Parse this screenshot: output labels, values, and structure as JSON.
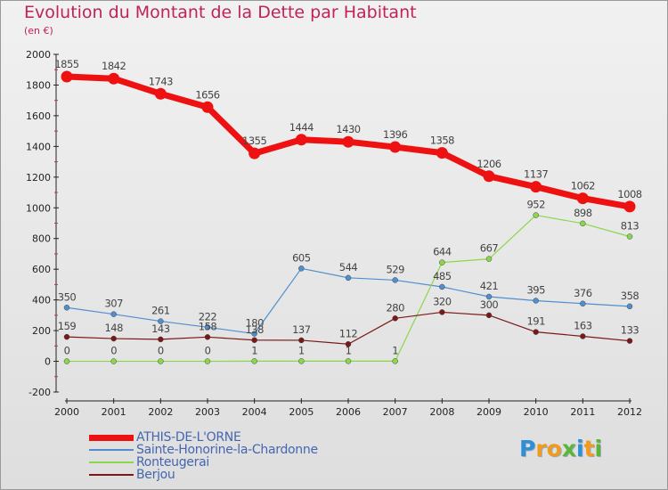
{
  "title": "Evolution du Montant de la Dette par Habitant",
  "subtitle": "(en €)",
  "logo": {
    "letters": [
      {
        "t": "P",
        "color": "#2f8fd6"
      },
      {
        "t": "r",
        "color": "#f29a1b"
      },
      {
        "t": "o",
        "color": "#f29a1b"
      },
      {
        "t": "x",
        "color": "#5bb536"
      },
      {
        "t": "i",
        "color": "#2f8fd6"
      },
      {
        "t": "t",
        "color": "#f29a1b"
      },
      {
        "t": "i",
        "color": "#5bb536"
      }
    ]
  },
  "chart_data": {
    "type": "line",
    "x": [
      "2000",
      "2001",
      "2002",
      "2003",
      "2004",
      "2005",
      "2006",
      "2007",
      "2008",
      "2009",
      "2010",
      "2011",
      "2012"
    ],
    "ylim": [
      -200,
      2000
    ],
    "yticks": [
      "-200",
      "0",
      "200",
      "400",
      "600",
      "800",
      "1000",
      "1200",
      "1400",
      "1600",
      "1800",
      "2000"
    ],
    "grid": false,
    "legend_position": "bottom-left",
    "series": [
      {
        "name": "ATHIS-DE-L'ORNE",
        "color": "#ee1111",
        "width": 7,
        "values": [
          1855,
          1842,
          1743,
          1656,
          1355,
          1444,
          1430,
          1396,
          1358,
          1206,
          1137,
          1062,
          1008
        ],
        "labels": [
          "1855",
          "1842",
          "1743",
          "1656",
          "1355",
          "1444",
          "1430",
          "1396",
          "1358",
          "1206",
          "1137",
          "1062",
          "1008"
        ]
      },
      {
        "name": "Sainte-Honorine-la-Chardonne",
        "color": "#4f8fd0",
        "width": 1.2,
        "values": [
          350,
          307,
          261,
          222,
          180,
          605,
          544,
          529,
          485,
          421,
          395,
          376,
          358
        ],
        "labels": [
          "350",
          "307",
          "261",
          "222",
          "180",
          "605",
          "544",
          "529",
          "485",
          "421",
          "395",
          "376",
          "358"
        ]
      },
      {
        "name": "Ronteugerai",
        "color": "#8ad84a",
        "width": 1.2,
        "values": [
          0,
          0,
          0,
          0,
          1,
          1,
          1,
          1,
          644,
          667,
          952,
          898,
          813
        ],
        "labels": [
          "0",
          "0",
          "0",
          "0",
          "1",
          "1",
          "1",
          "1",
          "644",
          "667",
          "952",
          "898",
          "813"
        ]
      },
      {
        "name": "Berjou",
        "color": "#7a1818",
        "width": 1.2,
        "values": [
          159,
          148,
          143,
          158,
          138,
          137,
          112,
          280,
          320,
          300,
          191,
          163,
          133
        ],
        "labels": [
          "159",
          "148",
          "143",
          "158",
          "138",
          "137",
          "112",
          "280",
          "320",
          "300",
          "191",
          "163",
          "133"
        ]
      }
    ]
  }
}
